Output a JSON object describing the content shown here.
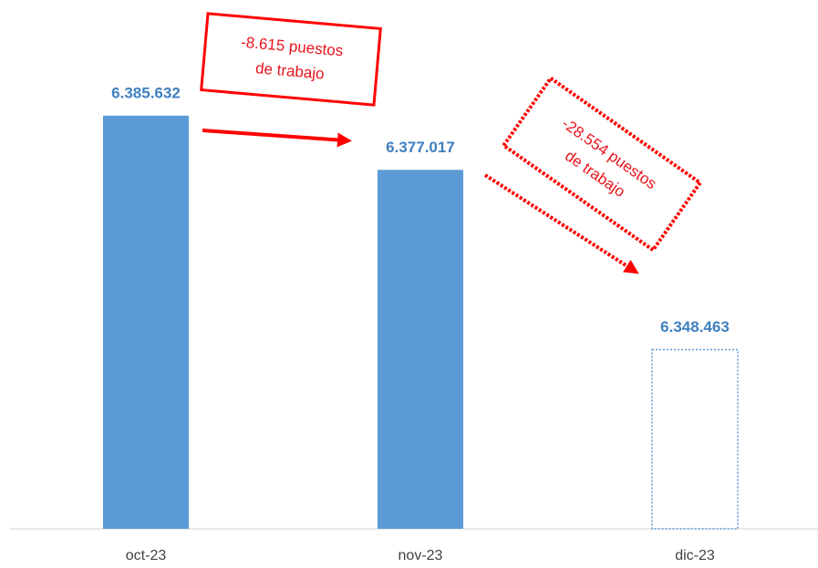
{
  "chart_data": {
    "type": "bar",
    "categories": [
      "oct-23",
      "nov-23",
      "dic-23"
    ],
    "values": [
      6385632,
      6377017,
      6348463
    ],
    "value_labels": [
      "6.385.632",
      "6.377.017",
      "6.348.463"
    ],
    "color": "#5b9bd5",
    "bar_styles": [
      "solid",
      "solid",
      "dotted"
    ],
    "ylim": [
      6320000,
      6404000
    ],
    "annotations": [
      {
        "lines": [
          "-8.615 puestos",
          "de trabajo"
        ]
      },
      {
        "lines": [
          "-28.554 puestos",
          "de trabajo"
        ]
      }
    ]
  }
}
